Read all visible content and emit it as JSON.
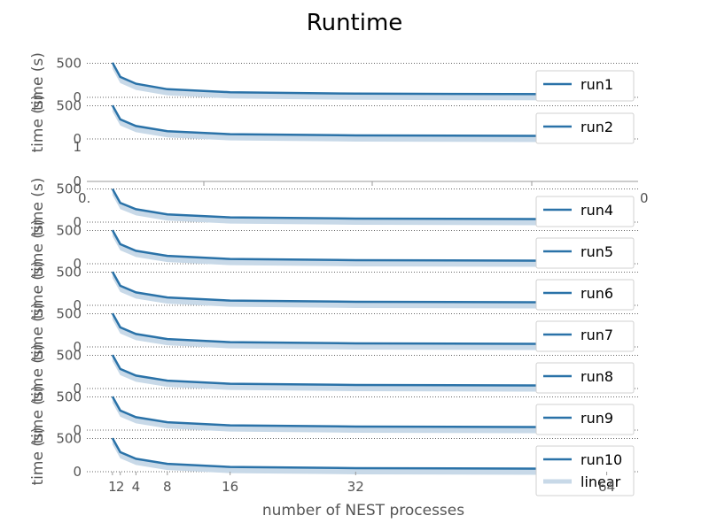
{
  "figure": {
    "title": "Runtime",
    "xlabel": "number of NEST processes",
    "ylabel": "time (s)"
  },
  "colors": {
    "line": "#2a72a8",
    "band": "#c8d9e8",
    "grid": "#666666",
    "text": "#555555"
  },
  "chart_data": [
    {
      "type": "line",
      "series": [
        {
          "name": "run1",
          "values": [
            510,
            300,
            200,
            120,
            75,
            55,
            45
          ]
        },
        {
          "name": "linear"
        }
      ],
      "x": [
        1,
        2,
        4,
        8,
        16,
        32,
        64
      ],
      "xlim": [
        0,
        68
      ],
      "ylim": [
        0,
        520
      ],
      "yticks": [
        0,
        500
      ],
      "grid": true,
      "legend": "right"
    },
    {
      "type": "line",
      "series": [
        {
          "name": "run2",
          "values": [
            505,
            295,
            195,
            118,
            72,
            53,
            44
          ]
        },
        {
          "name": "linear"
        }
      ],
      "x": [
        1,
        2,
        4,
        8,
        16,
        32,
        64
      ],
      "xlim": [
        0,
        68
      ],
      "ylim": [
        0,
        520
      ],
      "yticks": [
        0,
        500
      ],
      "grid": true,
      "legend": "right"
    },
    {
      "type": "line",
      "series": [],
      "xlim": [
        0,
        1
      ],
      "ylim": [
        0,
        1
      ],
      "xticks": [
        "0.",
        "0"
      ],
      "yticks": [
        "0",
        "1"
      ],
      "empty": true
    },
    {
      "type": "line",
      "series": [
        {
          "name": "run4",
          "values": [
            500,
            290,
            195,
            118,
            72,
            53,
            44
          ]
        },
        {
          "name": "linear"
        }
      ],
      "x": [
        1,
        2,
        4,
        8,
        16,
        32,
        64
      ],
      "xlim": [
        0,
        68
      ],
      "ylim": [
        0,
        520
      ],
      "yticks": [
        0,
        500
      ],
      "grid": true,
      "legend": "right"
    },
    {
      "type": "line",
      "series": [
        {
          "name": "run5",
          "values": [
            505,
            295,
            195,
            118,
            72,
            53,
            44
          ]
        },
        {
          "name": "linear"
        }
      ],
      "x": [
        1,
        2,
        4,
        8,
        16,
        32,
        64
      ],
      "xlim": [
        0,
        68
      ],
      "ylim": [
        0,
        520
      ],
      "yticks": [
        0,
        500
      ],
      "grid": true,
      "legend": "right"
    },
    {
      "type": "line",
      "series": [
        {
          "name": "run6",
          "values": [
            505,
            295,
            195,
            118,
            72,
            53,
            44
          ]
        },
        {
          "name": "linear"
        }
      ],
      "x": [
        1,
        2,
        4,
        8,
        16,
        32,
        64
      ],
      "xlim": [
        0,
        68
      ],
      "ylim": [
        0,
        520
      ],
      "yticks": [
        0,
        500
      ],
      "grid": true,
      "legend": "right"
    },
    {
      "type": "line",
      "series": [
        {
          "name": "run7",
          "values": [
            505,
            295,
            195,
            118,
            72,
            53,
            44
          ]
        },
        {
          "name": "linear"
        }
      ],
      "x": [
        1,
        2,
        4,
        8,
        16,
        32,
        64
      ],
      "xlim": [
        0,
        68
      ],
      "ylim": [
        0,
        520
      ],
      "yticks": [
        0,
        500
      ],
      "grid": true,
      "legend": "right"
    },
    {
      "type": "line",
      "series": [
        {
          "name": "run8",
          "values": [
            505,
            295,
            195,
            118,
            72,
            53,
            44
          ]
        },
        {
          "name": "linear"
        }
      ],
      "x": [
        1,
        2,
        4,
        8,
        16,
        32,
        64
      ],
      "xlim": [
        0,
        68
      ],
      "ylim": [
        0,
        520
      ],
      "yticks": [
        0,
        500
      ],
      "grid": true,
      "legend": "right"
    },
    {
      "type": "line",
      "series": [
        {
          "name": "run9",
          "values": [
            505,
            295,
            195,
            118,
            72,
            53,
            44
          ]
        },
        {
          "name": "linear"
        }
      ],
      "x": [
        1,
        2,
        4,
        8,
        16,
        32,
        64
      ],
      "xlim": [
        0,
        68
      ],
      "ylim": [
        0,
        520
      ],
      "yticks": [
        0,
        500
      ],
      "grid": true,
      "legend": "right"
    },
    {
      "type": "line",
      "series": [
        {
          "name": "run10",
          "values": [
            505,
            295,
            195,
            118,
            72,
            53,
            44
          ]
        },
        {
          "name": "linear"
        }
      ],
      "x": [
        1,
        2,
        4,
        8,
        16,
        32,
        64
      ],
      "xlim": [
        0,
        68
      ],
      "ylim": [
        0,
        520
      ],
      "xticks": [
        1,
        2,
        4,
        8,
        16,
        32,
        64
      ],
      "yticks": [
        0,
        500
      ],
      "grid": true,
      "legend": "right"
    }
  ]
}
